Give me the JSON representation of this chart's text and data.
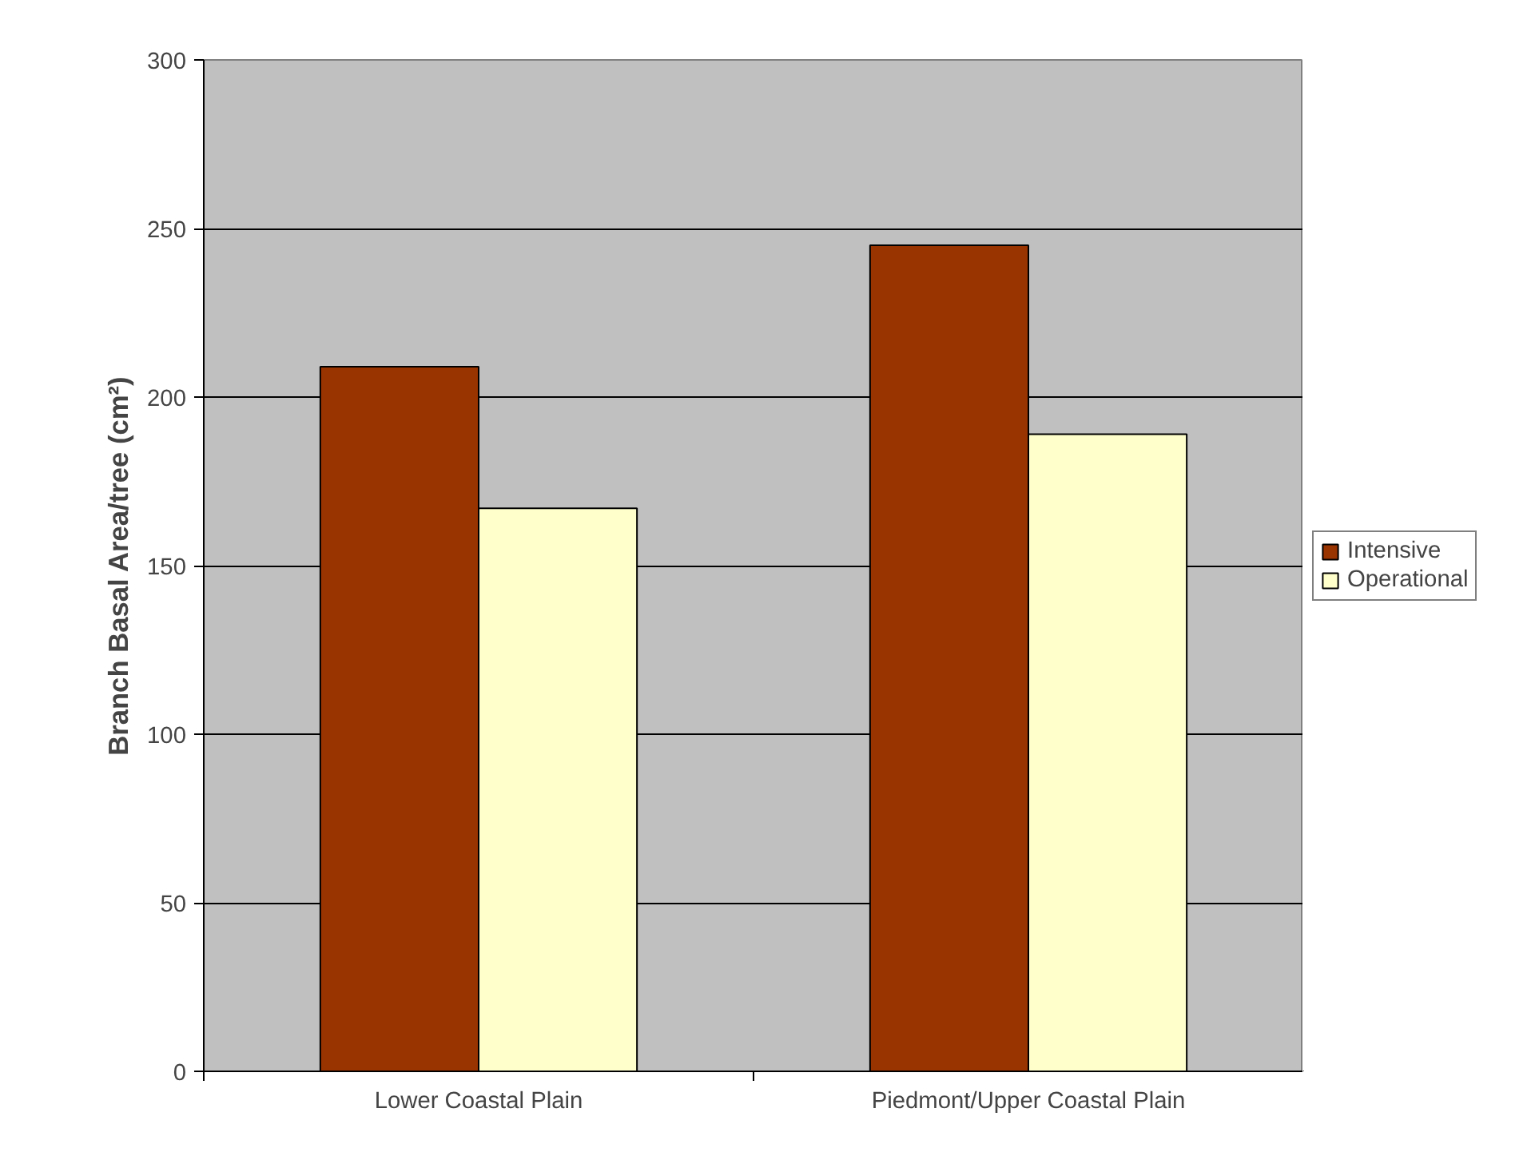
{
  "chart_data": {
    "type": "bar",
    "ylabel": "Branch Basal Area/tree (cm²)",
    "categories": [
      "Lower Coastal Plain",
      "Piedmont/Upper Coastal Plain"
    ],
    "series": [
      {
        "name": "Intensive",
        "color": "#993300",
        "values": [
          209,
          245
        ]
      },
      {
        "name": "Operational",
        "color": "#ffffcc",
        "values": [
          167,
          189
        ]
      }
    ],
    "ylim": [
      0,
      300
    ],
    "yticks": [
      0,
      50,
      100,
      150,
      200,
      250,
      300
    ],
    "grid": "y",
    "legend": "right"
  }
}
